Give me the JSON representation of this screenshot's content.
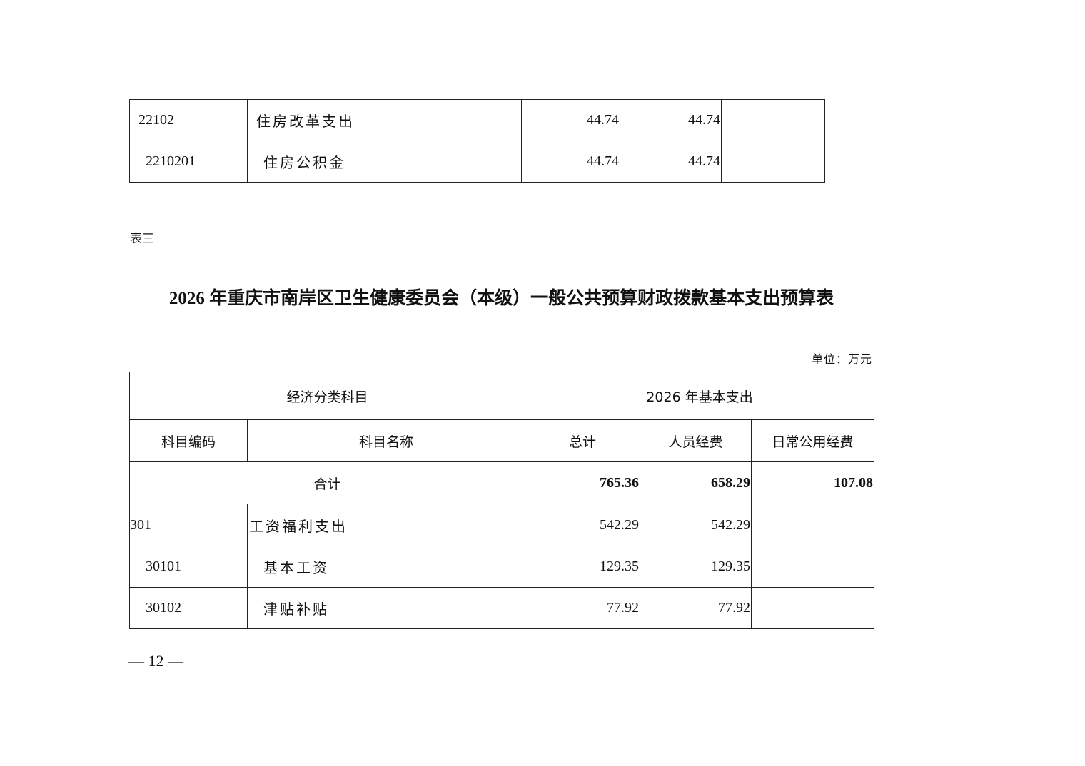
{
  "prev_table": {
    "rows": [
      {
        "code": "22102",
        "name": "住房改革支出",
        "total": "44.74",
        "personnel": "44.74",
        "public": ""
      },
      {
        "code": "2210201",
        "name": "住房公积金",
        "total": "44.74",
        "personnel": "44.74",
        "public": ""
      }
    ]
  },
  "table_label": "表三",
  "title": "2026 年重庆市南岸区卫生健康委员会（本级）一般公共预算财政拨款基本支出预算表",
  "unit": "单位：万元",
  "table": {
    "group_headers": {
      "left": "经济分类科目",
      "right": "2026 年基本支出"
    },
    "headers": {
      "code": "科目编码",
      "name": "科目名称",
      "total": "总计",
      "personnel": "人员经费",
      "public": "日常公用经费"
    },
    "sum_row": {
      "label": "合计",
      "total": "765.36",
      "personnel": "658.29",
      "public": "107.08"
    },
    "rows": [
      {
        "code": "301",
        "name": "工资福利支出",
        "total": "542.29",
        "personnel": "542.29",
        "public": ""
      },
      {
        "code": "30101",
        "name": "基本工资",
        "total": "129.35",
        "personnel": "129.35",
        "public": ""
      },
      {
        "code": "30102",
        "name": "津贴补贴",
        "total": "77.92",
        "personnel": "77.92",
        "public": ""
      }
    ]
  },
  "page_number": "— 12 —"
}
